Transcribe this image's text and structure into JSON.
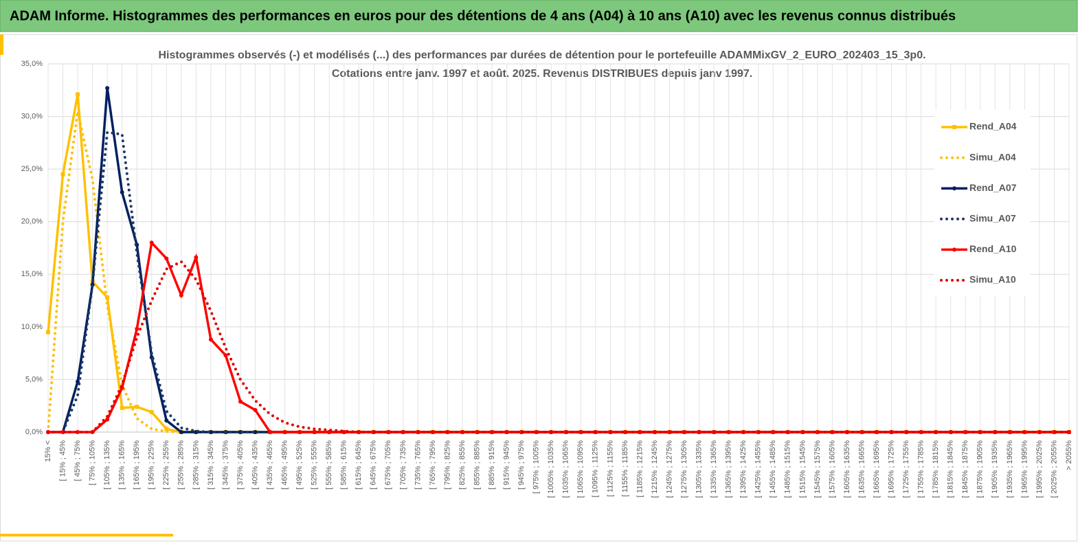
{
  "header": "ADAM Informe. Histogrammes des performances en euros pour des détentions de 4 ans (A04) à 10 ans (A10) avec les revenus connus distribués",
  "chart_data": {
    "type": "line",
    "title": "Histogrammes observés (-) et modélisés (...) des performances par durées de détention pour le portefeuille ADAMMixGV_2_EURO_202403_15_3p0.",
    "subtitle": "Cotations entre janv. 1997 et août. 2025. Revenus DISTRIBUES depuis janv 1997.",
    "categories": [
      "15% <",
      "[ 15% ; 45%",
      "[ 45% ; 75%",
      "[ 75% ; 105%",
      "[ 105% ; 135%",
      "[ 135% ; 165%",
      "[ 165% ; 195%",
      "[ 195% ; 225%",
      "[ 225% ; 255%",
      "[ 255% ; 285%",
      "[ 285% ; 315%",
      "[ 315% ; 345%",
      "[ 345% ; 375%",
      "[ 375% ; 405%",
      "[ 405% ; 435%",
      "[ 435% ; 465%",
      "[ 465% ; 495%",
      "[ 495% ; 525%",
      "[ 525% ; 555%",
      "[ 555% ; 585%",
      "[ 585% ; 615%",
      "[ 615% ; 645%",
      "[ 645% ; 675%",
      "[ 675% ; 705%",
      "[ 705% ; 735%",
      "[ 735% ; 765%",
      "[ 765% ; 795%",
      "[ 795% ; 825%",
      "[ 825% ; 855%",
      "[ 855% ; 885%",
      "[ 885% ; 915%",
      "[ 915% ; 945%",
      "[ 945% ; 975%",
      "[ 975% ; 1005%",
      "[ 1005% ; 1035%",
      "[ 1035% ; 1065%",
      "[ 1065% ; 1095%",
      "[ 1095% ; 1125%",
      "[ 1125% ; 1155%",
      "[ 1155% ; 1185%",
      "[ 1185% ; 1215%",
      "[ 1215% ; 1245%",
      "[ 1245% ; 1275%",
      "[ 1275% ; 1305%",
      "[ 1305% ; 1335%",
      "[ 1335% ; 1365%",
      "[ 1365% ; 1395%",
      "[ 1395% ; 1425%",
      "[ 1425% ; 1455%",
      "[ 1455% ; 1485%",
      "[ 1485% ; 1515%",
      "[ 1515% ; 1545%",
      "[ 1545% ; 1575%",
      "[ 1575% ; 1605%",
      "[ 1605% ; 1635%",
      "[ 1635% ; 1665%",
      "[ 1665% ; 1695%",
      "[ 1695% ; 1725%",
      "[ 1725% ; 1755%",
      "[ 1755% ; 1785%",
      "[ 1785% ; 1815%",
      "[ 1815% ; 1845%",
      "[ 1845% ; 1875%",
      "[ 1875% ; 1905%",
      "[ 1905% ; 1935%",
      "[ 1935% ; 1965%",
      "[ 1965% ; 1995%",
      "[ 1995% ; 2025%",
      "[ 2025% ; 2055%",
      "> 2055%"
    ],
    "series": [
      {
        "name": "Rend_A04",
        "color": "#ffc000",
        "style": "solid",
        "marker": "square",
        "values": [
          9.5,
          24.5,
          32.1,
          14.3,
          12.8,
          2.3,
          2.4,
          1.9,
          0.3,
          0,
          0,
          0,
          0,
          0,
          0,
          0,
          0,
          0,
          0,
          0,
          0,
          0,
          0,
          0,
          0,
          0,
          0,
          0,
          0,
          0,
          0,
          0,
          0,
          0,
          0,
          0,
          0,
          0,
          0,
          0,
          0,
          0,
          0,
          0,
          0,
          0,
          0,
          0,
          0,
          0,
          0,
          0,
          0,
          0,
          0,
          0,
          0,
          0,
          0,
          0,
          0,
          0,
          0,
          0,
          0,
          0,
          0,
          0,
          0,
          0
        ]
      },
      {
        "name": "Simu_A04",
        "color": "#ffc000",
        "style": "dotted",
        "values": [
          0,
          20,
          30.5,
          24,
          12,
          4.5,
          1.3,
          0.3,
          0.05,
          0,
          0,
          0,
          0,
          0,
          0,
          0,
          0,
          0,
          0,
          0,
          0,
          0,
          0,
          0,
          0,
          0,
          0,
          0,
          0,
          0,
          0,
          0,
          0,
          0,
          0,
          0,
          0,
          0,
          0,
          0,
          0,
          0,
          0,
          0,
          0,
          0,
          0,
          0,
          0,
          0,
          0,
          0,
          0,
          0,
          0,
          0,
          0,
          0,
          0,
          0,
          0,
          0,
          0,
          0,
          0,
          0,
          0,
          0,
          0,
          0
        ]
      },
      {
        "name": "Rend_A07",
        "color": "#002060",
        "style": "solid",
        "marker": "circle",
        "values": [
          0,
          0,
          4.8,
          14,
          32.7,
          22.8,
          17.8,
          7.1,
          1.1,
          0,
          0,
          0,
          0,
          0,
          0,
          0,
          0,
          0,
          0,
          0,
          0,
          0,
          0,
          0,
          0,
          0,
          0,
          0,
          0,
          0,
          0,
          0,
          0,
          0,
          0,
          0,
          0,
          0,
          0,
          0,
          0,
          0,
          0,
          0,
          0,
          0,
          0,
          0,
          0,
          0,
          0,
          0,
          0,
          0,
          0,
          0,
          0,
          0,
          0,
          0,
          0,
          0,
          0,
          0,
          0,
          0,
          0,
          0,
          0,
          0
        ]
      },
      {
        "name": "Simu_A07",
        "color": "#1f3864",
        "style": "dotted",
        "values": [
          0,
          0,
          3.5,
          14,
          28.5,
          28.3,
          17,
          7.5,
          2,
          0.4,
          0.1,
          0,
          0,
          0,
          0,
          0,
          0,
          0,
          0,
          0,
          0,
          0,
          0,
          0,
          0,
          0,
          0,
          0,
          0,
          0,
          0,
          0,
          0,
          0,
          0,
          0,
          0,
          0,
          0,
          0,
          0,
          0,
          0,
          0,
          0,
          0,
          0,
          0,
          0,
          0,
          0,
          0,
          0,
          0,
          0,
          0,
          0,
          0,
          0,
          0,
          0,
          0,
          0,
          0,
          0,
          0,
          0,
          0,
          0,
          0
        ]
      },
      {
        "name": "Rend_A10",
        "color": "#ff0000",
        "style": "solid",
        "marker": "circle",
        "values": [
          0,
          0,
          0,
          0,
          1.2,
          4.2,
          9.8,
          18,
          16.5,
          13,
          16.6,
          8.8,
          7.3,
          2.9,
          2.1,
          0,
          0,
          0,
          0,
          0,
          0,
          0,
          0,
          0,
          0,
          0,
          0,
          0,
          0,
          0,
          0,
          0,
          0,
          0,
          0,
          0,
          0,
          0,
          0,
          0,
          0,
          0,
          0,
          0,
          0,
          0,
          0,
          0,
          0,
          0,
          0,
          0,
          0,
          0,
          0,
          0,
          0,
          0,
          0,
          0,
          0,
          0,
          0,
          0,
          0,
          0,
          0,
          0,
          0,
          0
        ]
      },
      {
        "name": "Simu_A10",
        "color": "#e00000",
        "style": "dotted",
        "values": [
          0,
          0,
          0,
          0,
          1.5,
          4.5,
          9,
          12.5,
          15.5,
          16.2,
          14.5,
          11.5,
          8,
          5,
          3,
          1.7,
          0.9,
          0.5,
          0.3,
          0.2,
          0.1,
          0,
          0,
          0,
          0,
          0,
          0,
          0,
          0,
          0,
          0,
          0,
          0,
          0,
          0,
          0,
          0,
          0,
          0,
          0,
          0,
          0,
          0,
          0,
          0,
          0,
          0,
          0,
          0,
          0,
          0,
          0,
          0,
          0,
          0,
          0,
          0,
          0,
          0,
          0,
          0,
          0,
          0,
          0,
          0,
          0,
          0,
          0,
          0,
          0
        ]
      }
    ],
    "ylim": [
      0,
      35
    ],
    "yticks": [
      {
        "value": 0,
        "label": "0,0%"
      },
      {
        "value": 5,
        "label": "5,0%"
      },
      {
        "value": 10,
        "label": "10,0%"
      },
      {
        "value": 15,
        "label": "15,0%"
      },
      {
        "value": 20,
        "label": "20,0%"
      },
      {
        "value": 25,
        "label": "25,0%"
      },
      {
        "value": 30,
        "label": "30,0%"
      },
      {
        "value": 35,
        "label": "35,0%"
      }
    ],
    "grid": true,
    "legend": "right"
  }
}
